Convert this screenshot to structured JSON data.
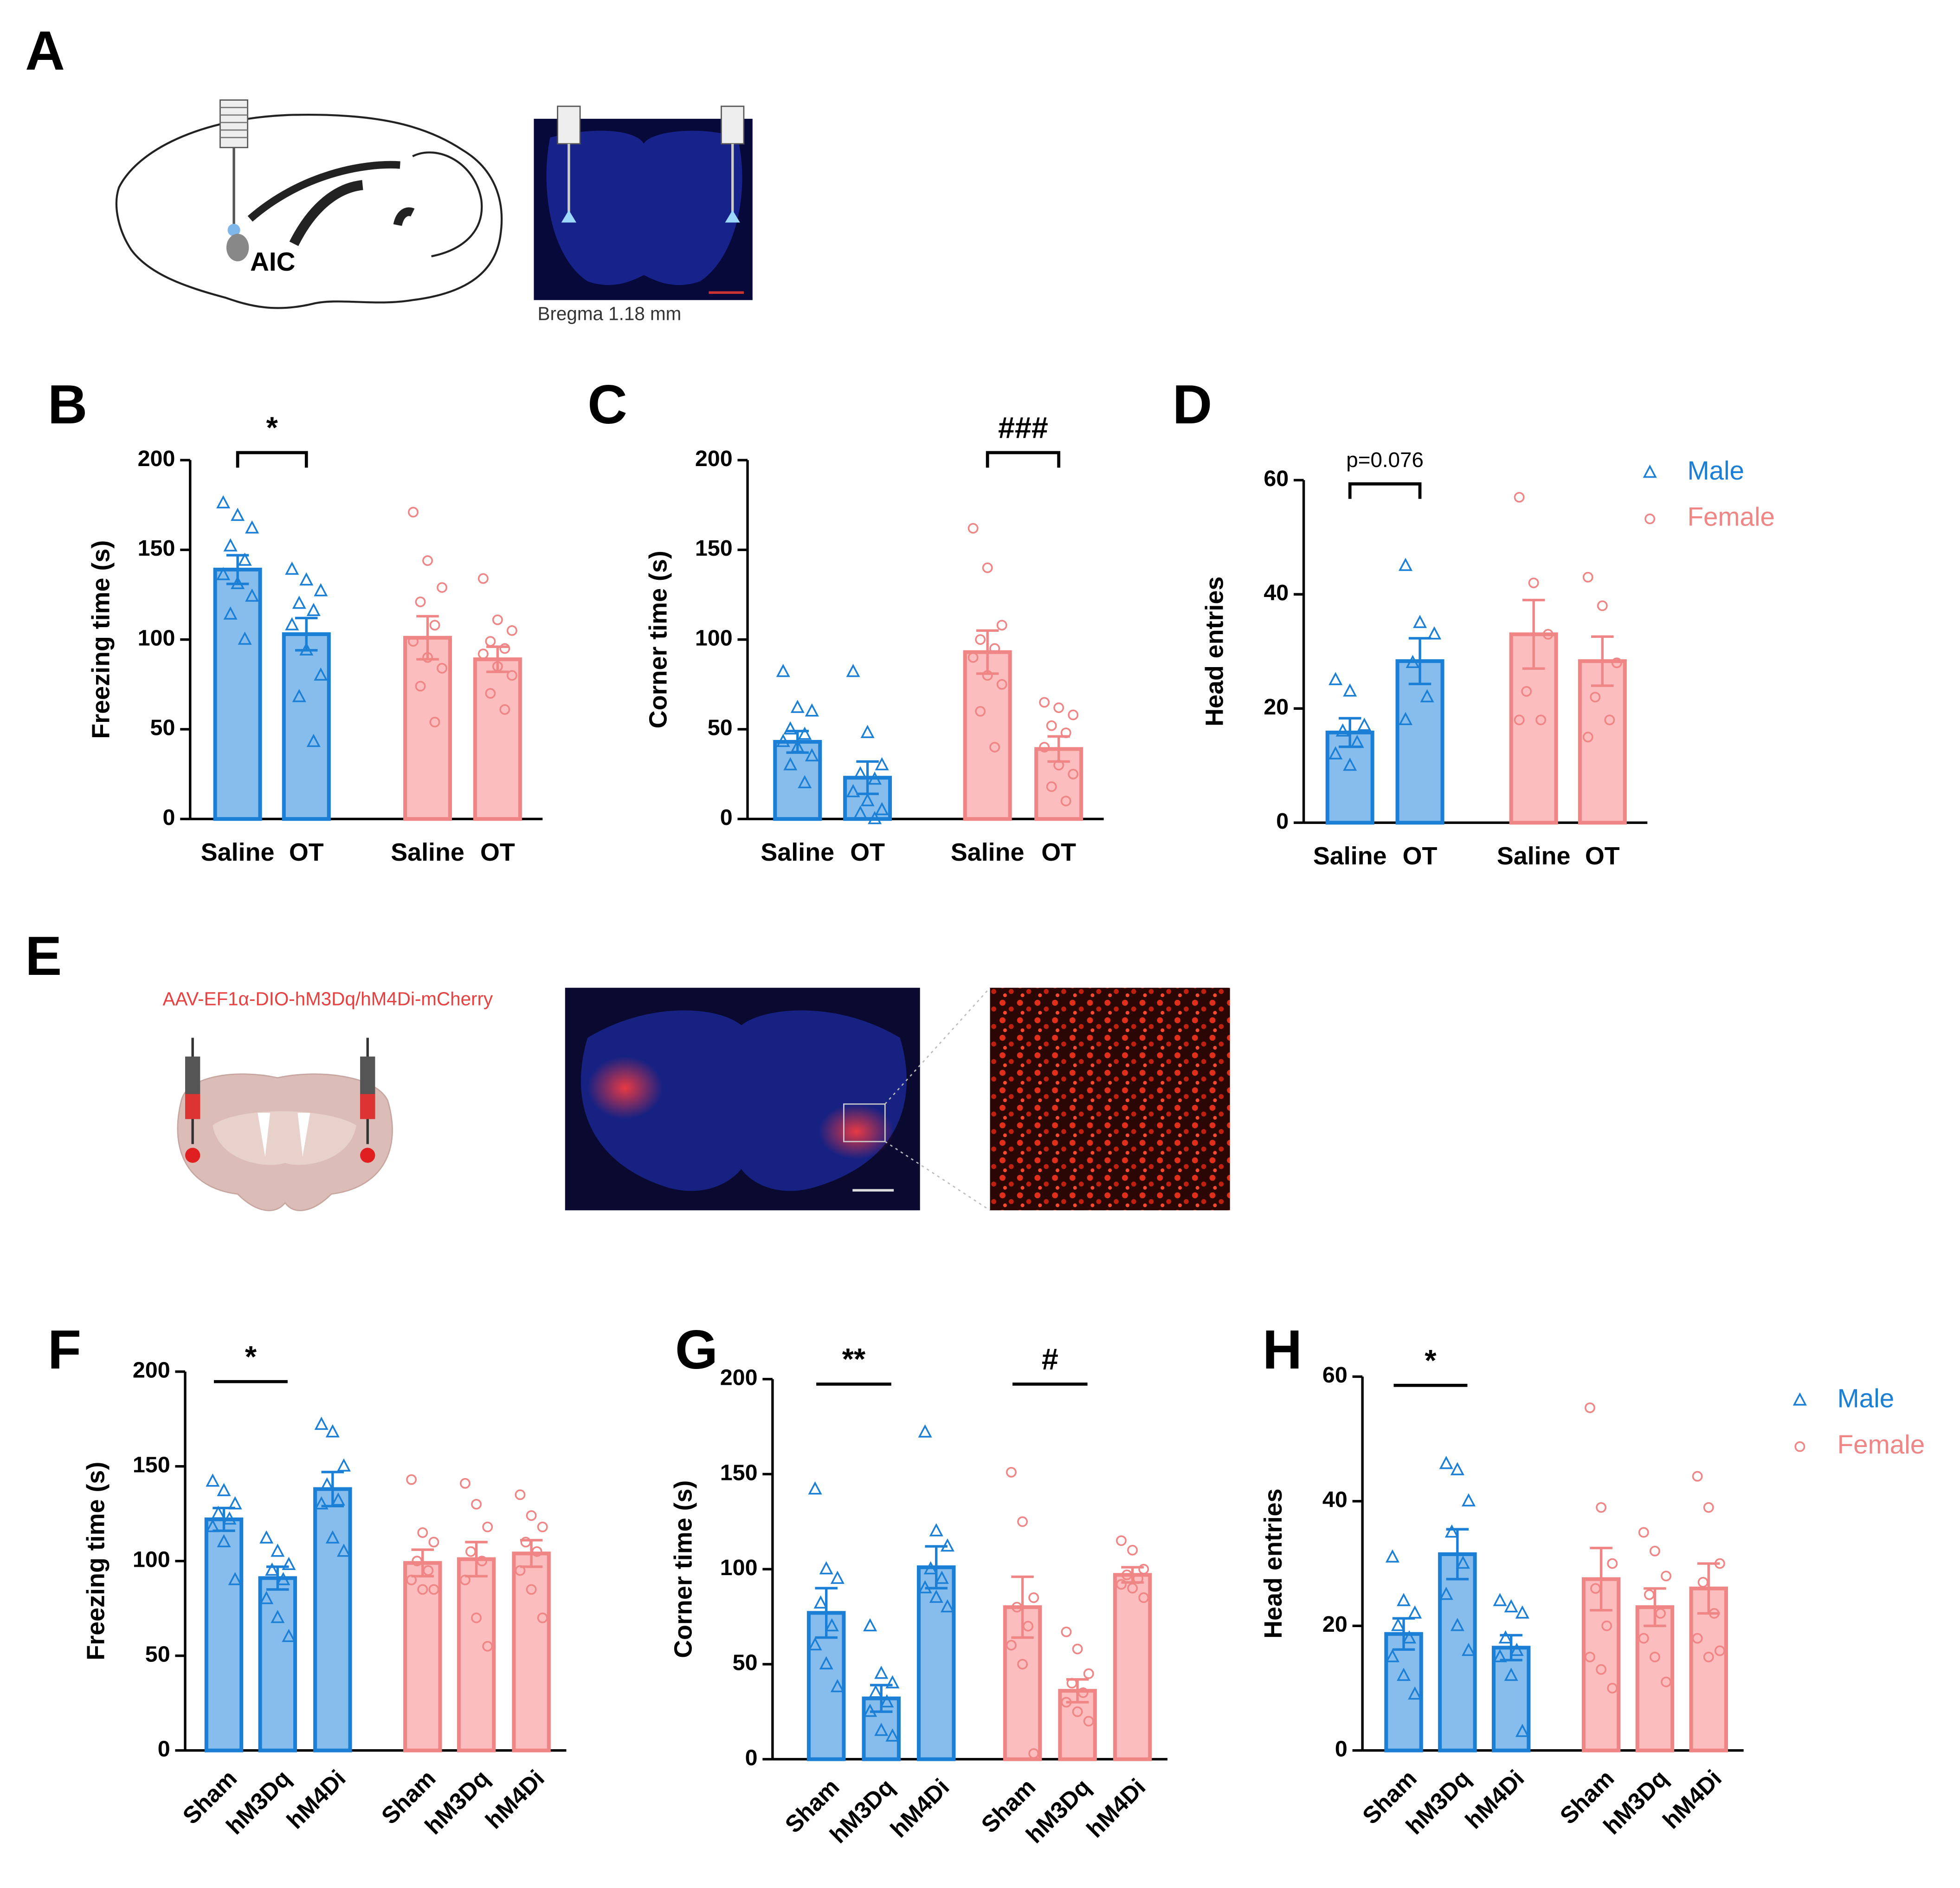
{
  "panels": {
    "A": {
      "label": "A",
      "region": "AIC",
      "caption": "Bregma 1.18 mm"
    },
    "E": {
      "label": "E",
      "virus": "AAV-EF1α-DIO-hM3Dq/hM4Di-mCherry"
    }
  },
  "chart_data": [
    {
      "type": "bar",
      "panel": "B",
      "ylabel": "Freezing time (s)",
      "categories": [
        "Saline",
        "OT"
      ],
      "ylim": [
        0,
        200
      ],
      "yticks": [
        0,
        50,
        100,
        150,
        200
      ],
      "legend": false,
      "series": [
        {
          "color": "#1b7fd6",
          "fill": "#86bdec",
          "marker": "triangle",
          "values": [
            139,
            103
          ],
          "errors": [
            8,
            9
          ],
          "points": [
            [
              176,
              169,
              162,
              152,
              144,
              136,
              131,
              124,
              114,
              100
            ],
            [
              139,
              133,
              127,
              120,
              116,
              108,
              94,
              80,
              68,
              43
            ]
          ]
        },
        {
          "color": "#f08585",
          "fill": "#fbbdbd",
          "marker": "circle",
          "values": [
            101,
            89
          ],
          "errors": [
            12,
            7
          ],
          "points": [
            [
              171,
              144,
              129,
              121,
              108,
              99,
              90,
              84,
              74,
              54
            ],
            [
              134,
              111,
              105,
              99,
              95,
              92,
              85,
              80,
              70,
              61
            ]
          ]
        }
      ],
      "annotations": [
        {
          "text": "*",
          "series": 0,
          "bars": [
            0,
            1
          ],
          "bracket": true
        }
      ]
    },
    {
      "type": "bar",
      "panel": "C",
      "ylabel": "Corner time (s)",
      "categories": [
        "Saline",
        "OT"
      ],
      "ylim": [
        0,
        200
      ],
      "yticks": [
        0,
        50,
        100,
        150,
        200
      ],
      "legend": false,
      "series": [
        {
          "color": "#1b7fd6",
          "fill": "#86bdec",
          "marker": "triangle",
          "values": [
            43,
            23
          ],
          "errors": [
            6,
            9
          ],
          "points": [
            [
              82,
              62,
              60,
              50,
              47,
              43,
              40,
              35,
              30,
              20
            ],
            [
              82,
              48,
              30,
              25,
              22,
              15,
              10,
              5,
              3,
              0
            ]
          ]
        },
        {
          "color": "#f08585",
          "fill": "#fbbdbd",
          "marker": "circle",
          "values": [
            93,
            39
          ],
          "errors": [
            12,
            7
          ],
          "points": [
            [
              162,
              140,
              108,
              100,
              95,
              90,
              80,
              75,
              60,
              40
            ],
            [
              65,
              62,
              58,
              52,
              48,
              40,
              30,
              25,
              18,
              10
            ]
          ]
        }
      ],
      "annotations": [
        {
          "text": "###",
          "series": 1,
          "bars": [
            0,
            1
          ],
          "bracket": true
        }
      ]
    },
    {
      "type": "bar",
      "panel": "D",
      "ylabel": "Head entries",
      "categories": [
        "Saline",
        "OT"
      ],
      "ylim": [
        0,
        60
      ],
      "yticks": [
        0,
        20,
        40,
        60
      ],
      "legend": true,
      "series": [
        {
          "name": "Male",
          "color": "#1b7fd6",
          "fill": "#86bdec",
          "marker": "triangle",
          "values": [
            15.8,
            28.3
          ],
          "errors": [
            2.5,
            4
          ],
          "points": [
            [
              25,
              23,
              17,
              16,
              14,
              12,
              10
            ],
            [
              45,
              35,
              33,
              28,
              22,
              18
            ]
          ]
        },
        {
          "name": "Female",
          "color": "#f08585",
          "fill": "#fbbdbd",
          "marker": "circle",
          "values": [
            33,
            28.3
          ],
          "errors": [
            6,
            4.3
          ],
          "points": [
            [
              57,
              42,
              33,
              23,
              18,
              18
            ],
            [
              43,
              38,
              28,
              22,
              18,
              15
            ]
          ]
        }
      ],
      "annotations": [
        {
          "text": "p=0.076",
          "series": 0,
          "bars": [
            0,
            1
          ],
          "bracket": true
        }
      ]
    },
    {
      "type": "bar",
      "panel": "F",
      "ylabel": "Freezing time (s)",
      "categories": [
        "Sham",
        "hM3Dq",
        "hM4Di"
      ],
      "ylim": [
        0,
        200
      ],
      "yticks": [
        0,
        50,
        100,
        150,
        200
      ],
      "legend": false,
      "series": [
        {
          "color": "#1b7fd6",
          "fill": "#86bdec",
          "marker": "triangle",
          "values": [
            122,
            91,
            138
          ],
          "errors": [
            6,
            6,
            9
          ],
          "points": [
            [
              142,
              137,
              130,
              125,
              122,
              118,
              110,
              90
            ],
            [
              112,
              105,
              98,
              95,
              90,
              80,
              70,
              60
            ],
            [
              172,
              168,
              150,
              140,
              132,
              130,
              112,
              105
            ]
          ]
        },
        {
          "color": "#f08585",
          "fill": "#fbbdbd",
          "marker": "circle",
          "values": [
            99,
            101,
            104
          ],
          "errors": [
            7,
            9,
            7
          ],
          "points": [
            [
              143,
              115,
              110,
              100,
              95,
              90,
              85,
              85
            ],
            [
              141,
              130,
              118,
              105,
              100,
              90,
              70,
              55
            ],
            [
              135,
              124,
              118,
              110,
              105,
              95,
              85,
              70
            ]
          ]
        }
      ],
      "annotations": [
        {
          "text": "*",
          "series": 0,
          "bars": [
            0,
            1
          ],
          "bracket": false
        }
      ]
    },
    {
      "type": "bar",
      "panel": "G",
      "ylabel": "Corner time (s)",
      "categories": [
        "Sham",
        "hM3Dq",
        "hM4Di"
      ],
      "ylim": [
        0,
        200
      ],
      "yticks": [
        0,
        50,
        100,
        150,
        200
      ],
      "legend": false,
      "series": [
        {
          "color": "#1b7fd6",
          "fill": "#86bdec",
          "marker": "triangle",
          "values": [
            77,
            32,
            101
          ],
          "errors": [
            13,
            7,
            11
          ],
          "points": [
            [
              142,
              100,
              95,
              82,
              70,
              60,
              50,
              38
            ],
            [
              70,
              45,
              40,
              35,
              30,
              25,
              15,
              12
            ],
            [
              172,
              120,
              112,
              100,
              95,
              90,
              85,
              80
            ]
          ]
        },
        {
          "color": "#f08585",
          "fill": "#fbbdbd",
          "marker": "circle",
          "values": [
            80,
            36,
            97
          ],
          "errors": [
            16,
            6,
            4
          ],
          "points": [
            [
              151,
              125,
              85,
              80,
              70,
              60,
              50,
              3
            ],
            [
              67,
              58,
              45,
              40,
              35,
              30,
              25,
              20
            ],
            [
              115,
              110,
              100,
              97,
              95,
              92,
              90,
              85
            ]
          ]
        }
      ],
      "annotations": [
        {
          "text": "**",
          "series": 0,
          "bars": [
            0,
            1
          ],
          "bracket": false
        },
        {
          "text": "#",
          "series": 1,
          "bars": [
            0,
            1
          ],
          "bracket": false
        }
      ]
    },
    {
      "type": "bar",
      "panel": "H",
      "ylabel": "Head entries",
      "categories": [
        "Sham",
        "hM3Dq",
        "hM4Di"
      ],
      "ylim": [
        0,
        60
      ],
      "yticks": [
        0,
        20,
        40,
        60
      ],
      "legend": true,
      "series": [
        {
          "name": "Male",
          "color": "#1b7fd6",
          "fill": "#86bdec",
          "marker": "triangle",
          "values": [
            18.7,
            31.5,
            16.5
          ],
          "errors": [
            2.5,
            4,
            2
          ],
          "points": [
            [
              31,
              24,
              22,
              20,
              18,
              15,
              12,
              9
            ],
            [
              46,
              45,
              40,
              35,
              30,
              25,
              20,
              16
            ],
            [
              24,
              23,
              22,
              18,
              16,
              15,
              12,
              3
            ]
          ]
        },
        {
          "name": "Female",
          "color": "#f08585",
          "fill": "#fbbdbd",
          "marker": "circle",
          "values": [
            27.5,
            23,
            26
          ],
          "errors": [
            5,
            3,
            4
          ],
          "points": [
            [
              55,
              39,
              30,
              26,
              20,
              15,
              13,
              10
            ],
            [
              35,
              32,
              28,
              25,
              22,
              18,
              15,
              11
            ],
            [
              44,
              39,
              30,
              27,
              22,
              18,
              15,
              16
            ]
          ]
        }
      ],
      "annotations": [
        {
          "text": "*",
          "series": 0,
          "bars": [
            0,
            1
          ],
          "bracket": false
        }
      ]
    }
  ]
}
